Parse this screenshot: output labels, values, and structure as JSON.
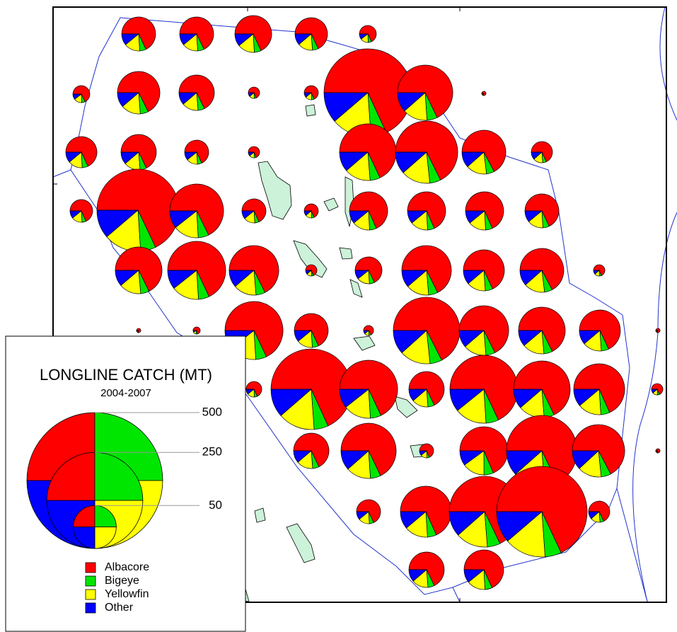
{
  "title": "LONGLINE CATCH (MT)",
  "subtitle": "2004-2007",
  "size_legend": [
    500,
    250,
    50
  ],
  "species": [
    {
      "name": "Albacore",
      "color": "#ff0000"
    },
    {
      "name": "Bigeye",
      "color": "#00e600"
    },
    {
      "name": "Yellowfin",
      "color": "#ffff00"
    },
    {
      "name": "Other",
      "color": "#0000ff"
    }
  ],
  "pies": [
    {
      "values": [
        21.2,
        1.9,
        4.7,
        3.4
      ]
    },
    {
      "values": [
        21.2,
        1.9,
        4.7,
        3.4
      ]
    },
    {
      "values": [
        25,
        2.2,
        5.5,
        4
      ]
    },
    {
      "values": [
        19.5,
        1.7,
        4.3,
        3.2
      ]
    },
    {
      "values": [
        5.3,
        0.5,
        1.2,
        0.8
      ]
    },
    {
      "values": [
        5.3,
        0.5,
        1.2,
        0.8
      ]
    },
    {
      "values": [
        33,
        3,
        7.3,
        5.5
      ]
    },
    {
      "values": [
        23,
        2,
        5.1,
        3.8
      ]
    },
    {
      "values": [
        2.4,
        0.2,
        0.5,
        0.4
      ]
    },
    {
      "values": [
        3.7,
        0.3,
        0.8,
        0.6
      ]
    },
    {
      "values": [
        142,
        12,
        31,
        23.5
      ]
    },
    {
      "values": [
        56,
        5,
        12,
        9.5
      ]
    },
    {
      "values": [
        0.4,
        0.02,
        0.05,
        0.03
      ]
    },
    {
      "values": [
        17.9,
        1.6,
        3.9,
        2.9
      ]
    },
    {
      "values": [
        23,
        2,
        5.1,
        3.8
      ]
    },
    {
      "values": [
        10.7,
        0.9,
        2.4,
        1.7
      ]
    },
    {
      "values": [
        2.4,
        0.2,
        0.5,
        0.4
      ]
    },
    {
      "values": [
        59,
        5,
        13,
        9.8
      ]
    },
    {
      "values": [
        71,
        6,
        16,
        12
      ]
    },
    {
      "values": [
        35,
        3,
        8,
        6
      ]
    },
    {
      "values": [
        8.3,
        0.7,
        1.8,
        1.4
      ]
    },
    {
      "values": [
        9.5,
        0.8,
        2.1,
        1.5
      ]
    },
    {
      "values": [
        124,
        11,
        27,
        20.5
      ]
    },
    {
      "values": [
        53,
        5,
        12,
        8.3
      ]
    },
    {
      "values": [
        10.7,
        0.9,
        2.4,
        1.7
      ]
    },
    {
      "values": [
        3.7,
        0.3,
        0.8,
        0.6
      ]
    },
    {
      "values": [
        27,
        2.3,
        5.9,
        4.3
      ]
    },
    {
      "values": [
        27,
        2.3,
        5.9,
        4.3
      ]
    },
    {
      "values": [
        27,
        2.3,
        5.9,
        4.3
      ]
    },
    {
      "values": [
        21.2,
        1.9,
        4.7,
        3.4
      ]
    },
    {
      "values": [
        40,
        3.5,
        9,
        6.6
      ]
    },
    {
      "values": [
        62,
        5.5,
        14,
        9.7
      ]
    },
    {
      "values": [
        45,
        4,
        10,
        7.5
      ]
    },
    {
      "values": [
        2.4,
        0.2,
        0.5,
        0.4
      ]
    },
    {
      "values": [
        13.3,
        1.2,
        3,
        2.1
      ]
    },
    {
      "values": [
        45,
        4,
        10,
        7.5
      ]
    },
    {
      "values": [
        31,
        2.7,
        6.8,
        5.1
      ]
    },
    {
      "values": [
        35,
        3,
        8,
        6
      ]
    },
    {
      "values": [
        2.4,
        0.2,
        0.5,
        0.4
      ]
    },
    {
      "values": [
        0.4,
        0.02,
        0.05,
        0.03
      ]
    },
    {
      "values": [
        1,
        0.1,
        0.2,
        0.1
      ]
    },
    {
      "values": [
        62,
        5.5,
        14,
        9.7
      ]
    },
    {
      "values": [
        21.2,
        1.9,
        4.7,
        3.4
      ]
    },
    {
      "values": [
        1.8,
        0.2,
        0.4,
        0.3
      ]
    },
    {
      "values": [
        81,
        7,
        18,
        14
      ]
    },
    {
      "values": [
        45,
        4,
        10,
        7.5
      ]
    },
    {
      "values": [
        40,
        3.5,
        9,
        6.6
      ]
    },
    {
      "values": [
        31,
        2.7,
        6.8,
        5.1
      ]
    },
    {
      "values": [
        0.4,
        0.02,
        0.05,
        0.03
      ]
    },
    {
      "values": [
        4.5,
        0.4,
        1,
        0.7
      ]
    },
    {
      "values": [
        120,
        10,
        26,
        20
      ]
    },
    {
      "values": [
        62,
        5.5,
        14,
        9.7
      ]
    },
    {
      "values": [
        23,
        2,
        5.1,
        3.8
      ]
    },
    {
      "values": [
        85,
        7.5,
        19,
        13.5
      ]
    },
    {
      "values": [
        59,
        5,
        13,
        9.8
      ]
    },
    {
      "values": [
        48,
        4,
        10.5,
        7.8
      ]
    },
    {
      "values": [
        2.4,
        0.2,
        0.5,
        0.4
      ]
    },
    {
      "values": [
        23,
        2,
        5.1,
        3.8
      ]
    },
    {
      "values": [
        56,
        5,
        12,
        9.5
      ]
    },
    {
      "values": [
        3.7,
        0.3,
        0.8,
        0.6
      ]
    },
    {
      "values": [
        43,
        4,
        9.4,
        6.3
      ]
    },
    {
      "values": [
        92,
        8,
        20,
        15.6
      ]
    },
    {
      "values": [
        50,
        4.5,
        11,
        8.8
      ]
    },
    {
      "values": [
        0.4,
        0.02,
        0.05,
        0.03
      ]
    },
    {
      "values": [
        10.7,
        0.9,
        2.4,
        1.7
      ]
    },
    {
      "values": [
        48,
        4,
        10.5,
        7.8
      ]
    },
    {
      "values": [
        92,
        8,
        20,
        15.6
      ]
    },
    {
      "values": [
        151,
        13,
        33,
        25
      ]
    },
    {
      "values": [
        8.3,
        0.7,
        1.8,
        1.4
      ]
    },
    {
      "values": [
        23,
        2,
        5.1,
        3.8
      ]
    },
    {
      "values": [
        29,
        2.5,
        6.4,
        4.6
      ]
    }
  ]
}
